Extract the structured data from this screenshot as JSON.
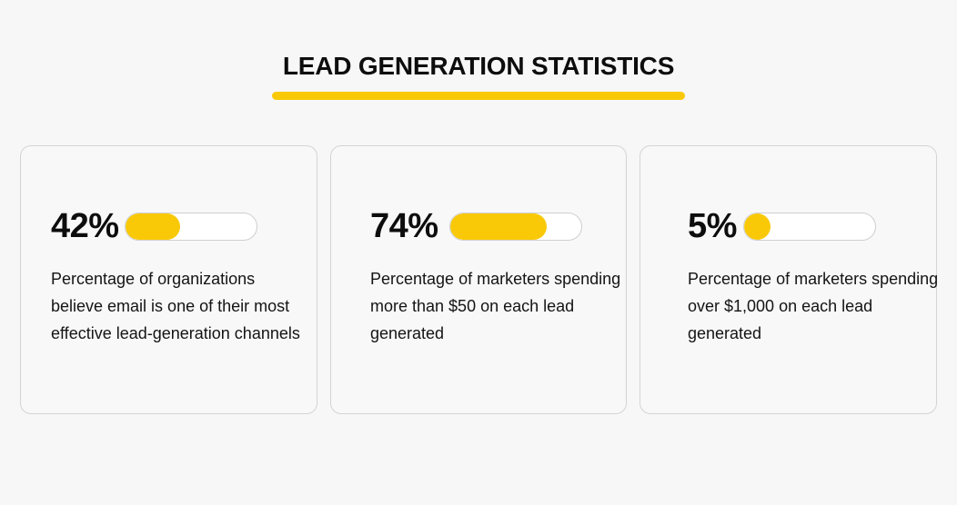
{
  "header": {
    "title": "LEAD GENERATION STATISTICS",
    "accent_color": "#f9c908"
  },
  "stats": [
    {
      "value_label": "42%",
      "percent": 42,
      "description": "Percentage of organizations believe email is one of their most effective lead-generation channels"
    },
    {
      "value_label": "74%",
      "percent": 74,
      "description": "Percentage of marketers spending more than $50 on each lead generated"
    },
    {
      "value_label": "5%",
      "percent": 5,
      "description": "Percentage of marketers spending over $1,000 on each lead generated"
    }
  ],
  "chart_data": {
    "type": "bar",
    "title": "LEAD GENERATION STATISTICS",
    "categories": [
      "Organizations believing email is one of their most effective lead-generation channels",
      "Marketers spending more than $50 on each lead generated",
      "Marketers spending over $1,000 on each lead generated"
    ],
    "values": [
      42,
      74,
      5
    ],
    "xlabel": "",
    "ylabel": "Percentage",
    "ylim": [
      0,
      100
    ],
    "orientation": "horizontal",
    "grid": false,
    "legend": "none"
  }
}
